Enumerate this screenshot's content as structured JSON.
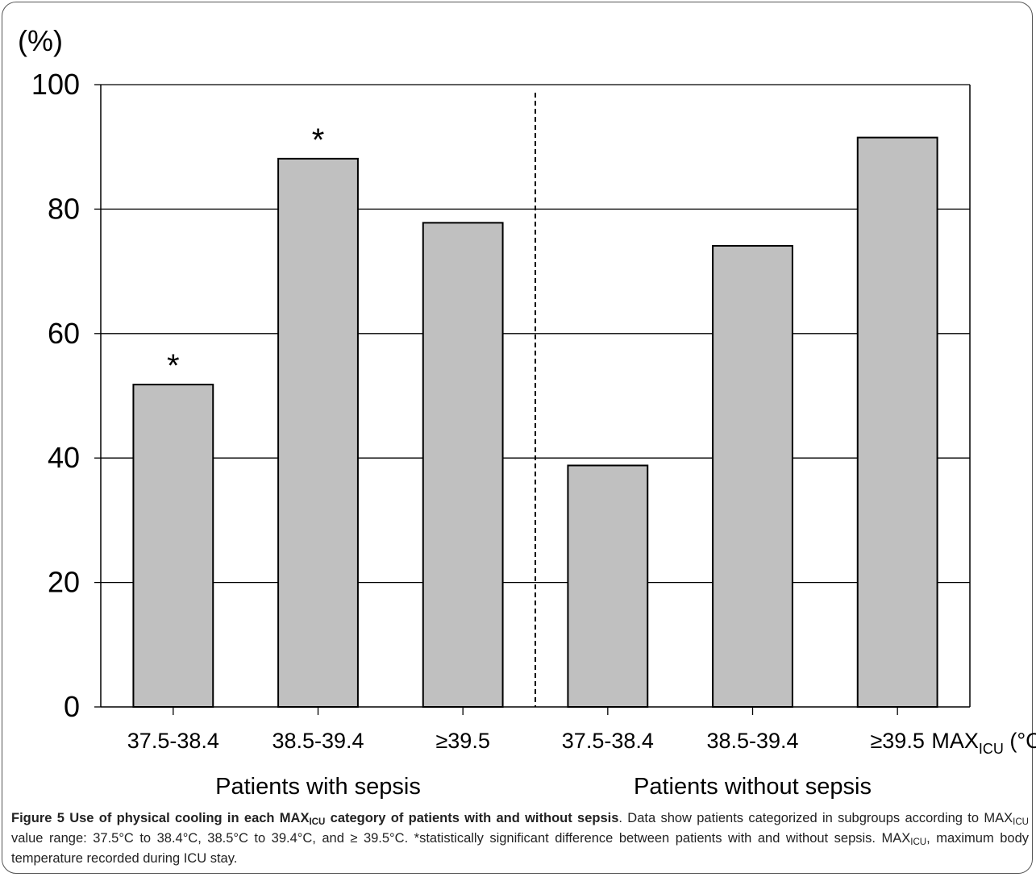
{
  "chart_data": {
    "type": "bar",
    "ylabel": "(%)",
    "ylim": [
      0,
      100
    ],
    "yticks": [
      0,
      20,
      40,
      60,
      80,
      100
    ],
    "grid": true,
    "categories": [
      "37.5-38.4",
      "38.5-39.4",
      "≥39.5",
      "37.5-38.4",
      "38.5-39.4",
      "≥39.5"
    ],
    "values": [
      51.8,
      88.1,
      77.8,
      38.8,
      74.1,
      91.5
    ],
    "significance_marks": [
      "*",
      "*",
      "",
      "",
      "",
      ""
    ],
    "groups": [
      {
        "label": "Patients with sepsis",
        "indices": [
          0,
          1,
          2
        ]
      },
      {
        "label": "Patients without sepsis",
        "indices": [
          3,
          4,
          5
        ]
      }
    ],
    "xaxis_label": {
      "main": "MAX",
      "sub": "ICU",
      "unit": " (°C)"
    },
    "bar_color": "#c0c0c0",
    "divider": "dashed line between the two groups"
  },
  "caption": {
    "title_parts": [
      "Figure 5 Use of physical cooling in each MAX",
      "ICU",
      " category of patients with and without sepsis"
    ],
    "body_parts": [
      ". Data show patients categorized in subgroups according to MAX",
      "ICU",
      " value range: 37.5°C to 38.4°C, 38.5°C to 39.4°C, and ≥ 39.5°C. *statistically significant difference between patients with and without sepsis. MAX",
      "ICU",
      ", maximum body temperature recorded during ICU stay."
    ]
  }
}
